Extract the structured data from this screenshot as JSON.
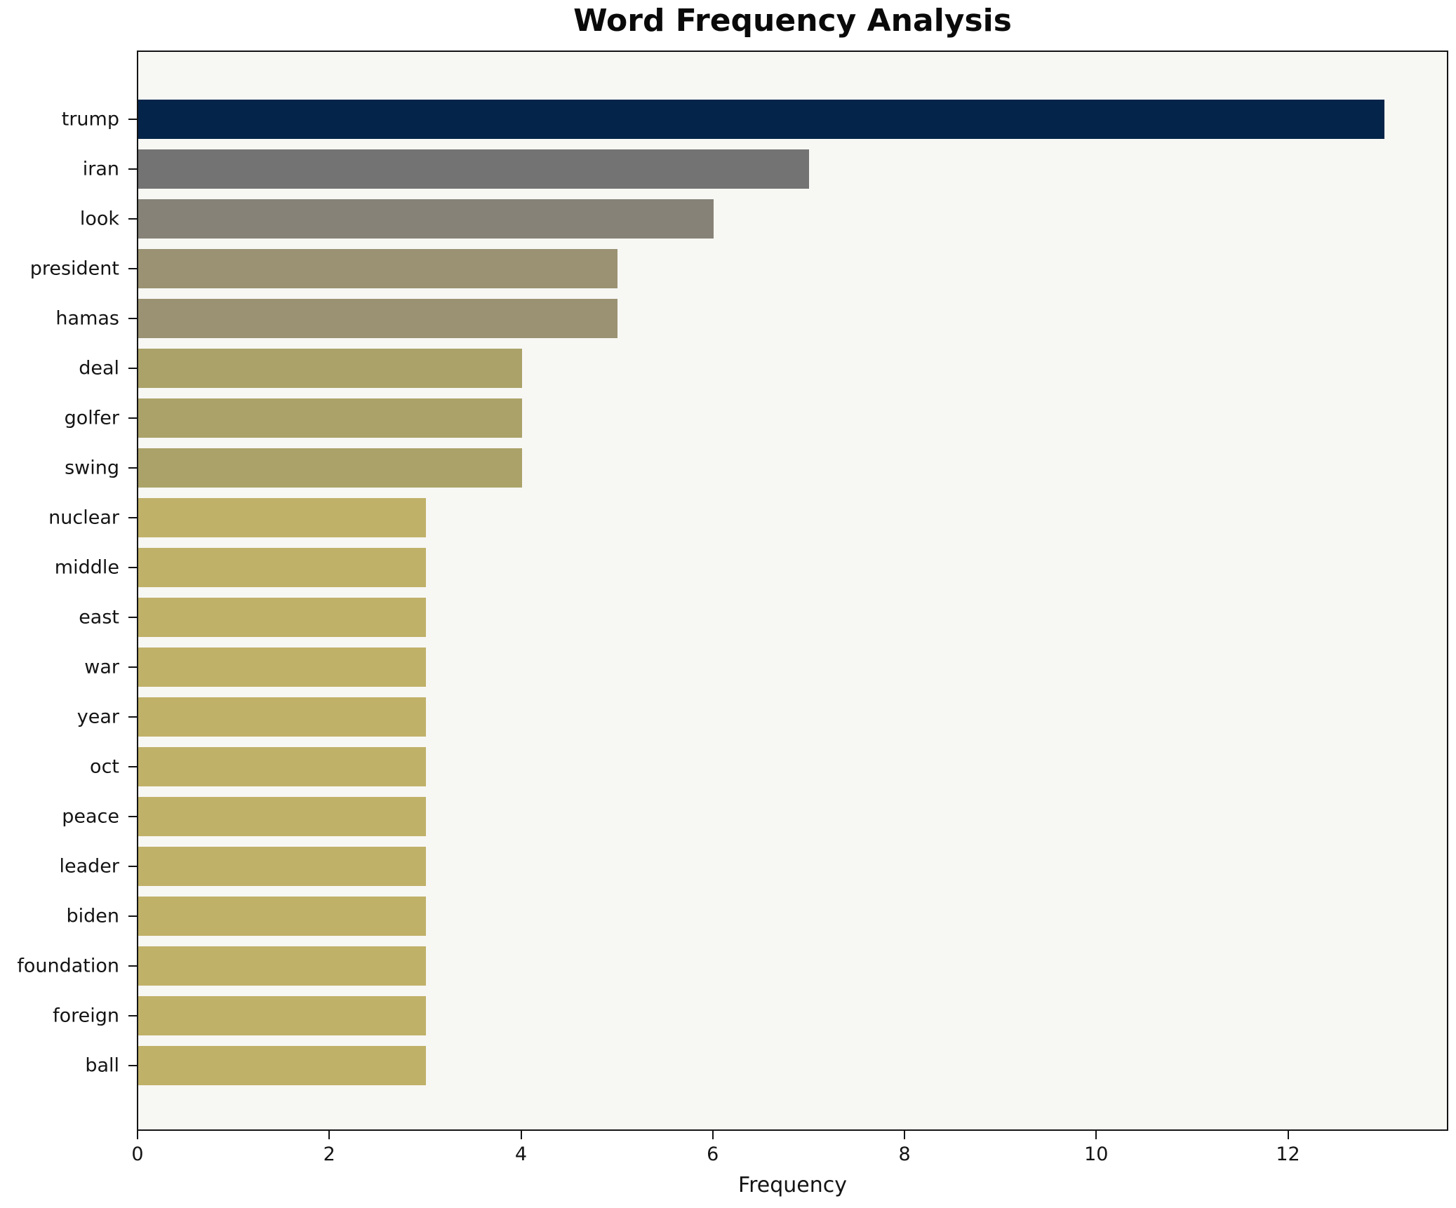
{
  "chart_data": {
    "type": "bar",
    "orientation": "horizontal",
    "title": "Word Frequency Analysis",
    "xlabel": "Frequency",
    "ylabel": "",
    "categories": [
      "trump",
      "iran",
      "look",
      "president",
      "hamas",
      "deal",
      "golfer",
      "swing",
      "nuclear",
      "middle",
      "east",
      "war",
      "year",
      "oct",
      "peace",
      "leader",
      "biden",
      "foundation",
      "foreign",
      "ball"
    ],
    "values": [
      13,
      7,
      6,
      5,
      5,
      4,
      4,
      4,
      3,
      3,
      3,
      3,
      3,
      3,
      3,
      3,
      3,
      3,
      3,
      3
    ],
    "xlim": [
      0,
      13.65
    ],
    "x_ticks": [
      0,
      2,
      4,
      6,
      8,
      10,
      12
    ],
    "grid": false,
    "legend": null,
    "plot_background": "#f7f7f4",
    "spine_color": "#141414",
    "value_colors": {
      "13": "#042449",
      "7": "#737373",
      "6": "#868277",
      "5": "#9a9272",
      "4": "#aba269",
      "3": "#c0b169"
    }
  }
}
